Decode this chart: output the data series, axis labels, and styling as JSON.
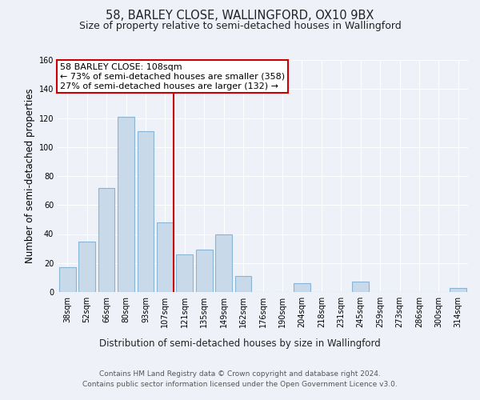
{
  "title1": "58, BARLEY CLOSE, WALLINGFORD, OX10 9BX",
  "title2": "Size of property relative to semi-detached houses in Wallingford",
  "xlabel": "Distribution of semi-detached houses by size in Wallingford",
  "ylabel": "Number of semi-detached properties",
  "categories": [
    "38sqm",
    "52sqm",
    "66sqm",
    "80sqm",
    "93sqm",
    "107sqm",
    "121sqm",
    "135sqm",
    "149sqm",
    "162sqm",
    "176sqm",
    "190sqm",
    "204sqm",
    "218sqm",
    "231sqm",
    "245sqm",
    "259sqm",
    "273sqm",
    "286sqm",
    "300sqm",
    "314sqm"
  ],
  "values": [
    17,
    35,
    72,
    121,
    111,
    48,
    26,
    29,
    40,
    11,
    0,
    0,
    6,
    0,
    0,
    7,
    0,
    0,
    0,
    0,
    3
  ],
  "bar_color": "#c8daea",
  "bar_edge_color": "#8ab4d4",
  "vline_color": "#cc0000",
  "box_edge_color": "#cc0000",
  "annotation_title": "58 BARLEY CLOSE: 108sqm",
  "annotation_line1": "← 73% of semi-detached houses are smaller (358)",
  "annotation_line2": "27% of semi-detached houses are larger (132) →",
  "ylim": [
    0,
    160
  ],
  "yticks": [
    0,
    20,
    40,
    60,
    80,
    100,
    120,
    140,
    160
  ],
  "footnote1": "Contains HM Land Registry data © Crown copyright and database right 2024.",
  "footnote2": "Contains public sector information licensed under the Open Government Licence v3.0.",
  "bg_color": "#eef2f8",
  "plot_bg_color": "#eef2f8",
  "grid_color": "#ffffff",
  "title1_fontsize": 10.5,
  "title2_fontsize": 9,
  "axis_label_fontsize": 8.5,
  "tick_fontsize": 7,
  "annotation_fontsize": 8,
  "footnote_fontsize": 6.5
}
